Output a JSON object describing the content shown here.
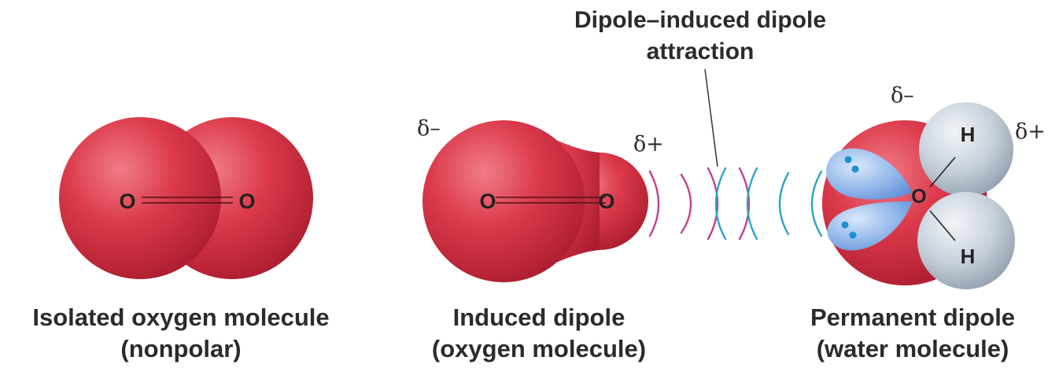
{
  "title": {
    "line1": "Dipole–induced dipole",
    "line2": "attraction"
  },
  "captions": {
    "isolated": {
      "line1": "Isolated oxygen molecule",
      "line2": "(nonpolar)"
    },
    "induced": {
      "line1": "Induced dipole",
      "line2": "(oxygen molecule)"
    },
    "permanent": {
      "line1": "Permanent dipole",
      "line2": "(water molecule)"
    }
  },
  "atoms": {
    "oxygen": "O",
    "hydrogen": "H"
  },
  "charges": {
    "partial_negative": "δ–",
    "partial_positive": "δ+"
  },
  "colors": {
    "oxygen": "#d93a4a",
    "hydrogen": "#c9d3dc",
    "lone_pair": "#8fb5ea",
    "wave_magenta": "#c2408f",
    "wave_cyan": "#2fa3c9",
    "text": "#2b2b2b"
  }
}
